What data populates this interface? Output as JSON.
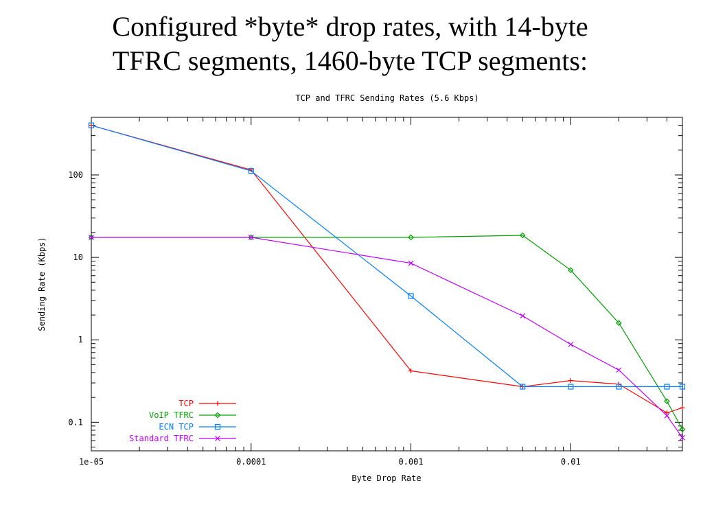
{
  "slide": {
    "title_line1": "Configured *byte* drop rates, with 14-byte",
    "title_line2": "TFRC segments, 1460-byte TCP segments:"
  },
  "chart_data": {
    "type": "line",
    "title": "TCP and TFRC Sending Rates (5.6 Kbps)",
    "xlabel": "Byte Drop Rate",
    "ylabel": "Sending Rate (Kbps)",
    "x_scale": "log",
    "y_scale": "log",
    "xlim": [
      1e-05,
      0.05
    ],
    "ylim": [
      0.045,
      500
    ],
    "x_ticks": [
      {
        "value": 1e-05,
        "label": "1e-05"
      },
      {
        "value": 0.0001,
        "label": "0.0001"
      },
      {
        "value": 0.001,
        "label": "0.001"
      },
      {
        "value": 0.01,
        "label": "0.01"
      }
    ],
    "y_ticks": [
      {
        "value": 0.1,
        "label": "0.1"
      },
      {
        "value": 1,
        "label": "1"
      },
      {
        "value": 10,
        "label": "10"
      },
      {
        "value": 100,
        "label": "100"
      }
    ],
    "grid": false,
    "legend_position": "bottom-left",
    "series": [
      {
        "name": "TCP",
        "color": "#ff0000",
        "marker": "plus",
        "x": [
          1e-05,
          0.0001,
          0.001,
          0.005,
          0.01,
          0.02,
          0.04,
          0.05
        ],
        "y": [
          400,
          115,
          0.42,
          0.27,
          0.32,
          0.29,
          0.13,
          0.15
        ]
      },
      {
        "name": "VoIP TFRC",
        "color": "#00a000",
        "marker": "diamond",
        "x": [
          1e-05,
          0.0001,
          0.001,
          0.005,
          0.01,
          0.02,
          0.04,
          0.05
        ],
        "y": [
          17.5,
          17.5,
          17.5,
          18.5,
          7,
          1.6,
          0.18,
          0.082
        ]
      },
      {
        "name": "ECN TCP",
        "color": "#0080ff",
        "marker": "square",
        "x": [
          1e-05,
          0.0001,
          0.001,
          0.005,
          0.01,
          0.02,
          0.04,
          0.05
        ],
        "y": [
          400,
          112,
          3.4,
          0.27,
          0.27,
          0.27,
          0.27,
          0.27
        ]
      },
      {
        "name": "Standard TFRC",
        "color": "#c000ff",
        "marker": "cross",
        "x": [
          1e-05,
          0.0001,
          0.001,
          0.005,
          0.01,
          0.02,
          0.04,
          0.05
        ],
        "y": [
          17.5,
          17.5,
          8.5,
          1.95,
          0.88,
          0.43,
          0.12,
          0.065
        ]
      }
    ]
  }
}
